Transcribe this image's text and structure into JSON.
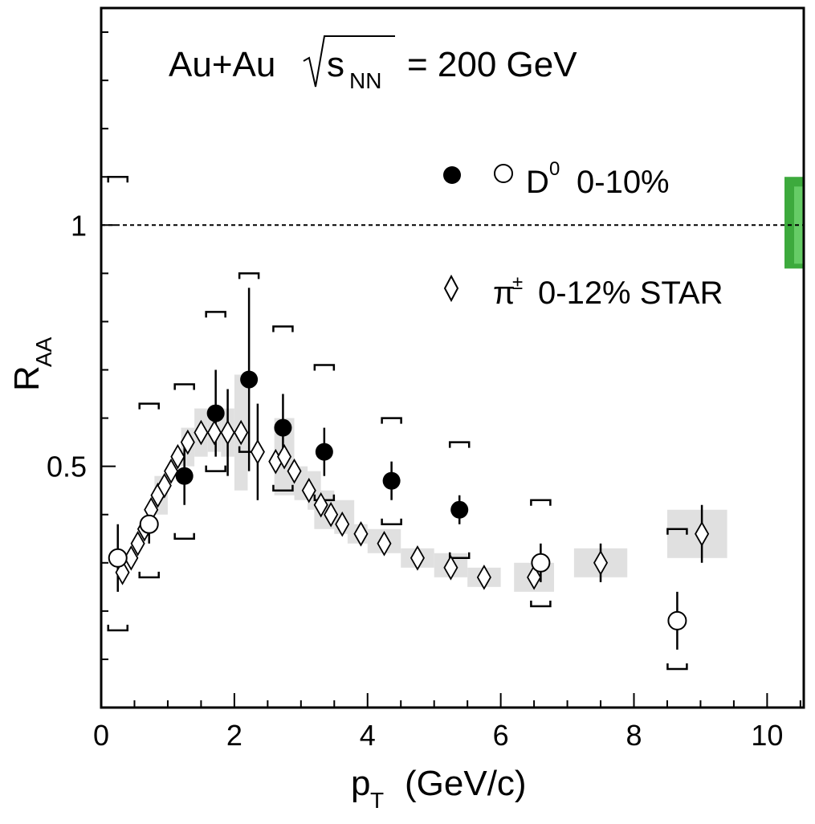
{
  "chart_data": {
    "type": "scatter",
    "title": "Au+Au",
    "energy_label": {
      "prefix": "s",
      "sub": "NN",
      "suffix": "= 200 GeV"
    },
    "xlabel": {
      "main": "p",
      "sub": "T",
      "rest": "(GeV/c)"
    },
    "ylabel": {
      "main": "R",
      "sub": "AA"
    },
    "xlim": [
      0,
      10.55
    ],
    "ylim": [
      0,
      1.45
    ],
    "x_ticks": [
      "0",
      "2",
      "4",
      "6",
      "8",
      "10"
    ],
    "y_ticks": [
      "0.5",
      "1"
    ],
    "reference_line": 1.0,
    "legend": {
      "d0": {
        "label_main": "D",
        "label_sup": "0",
        "label_rest": "0-10%"
      },
      "pion": {
        "label_main": "π",
        "label_sup": "±",
        "label_rest": "0-12% STAR"
      }
    },
    "series": [
      {
        "name": "D0 0-10% (filled)",
        "marker": "filled-circle",
        "points": [
          {
            "x": 1.25,
            "y": 0.48,
            "err": 0.06,
            "sys": [
              0.35,
              0.67
            ]
          },
          {
            "x": 1.72,
            "y": 0.61,
            "err": 0.09,
            "sys": [
              0.49,
              0.82
            ]
          },
          {
            "x": 2.22,
            "y": 0.68,
            "err": 0.19,
            "sys": [
              0.53,
              0.9
            ]
          },
          {
            "x": 2.73,
            "y": 0.58,
            "err": 0.07,
            "sys": [
              0.45,
              0.79
            ]
          },
          {
            "x": 3.35,
            "y": 0.53,
            "err": 0.05,
            "sys": [
              0.43,
              0.71
            ]
          },
          {
            "x": 4.36,
            "y": 0.47,
            "err": 0.04,
            "sys": [
              0.38,
              0.6
            ]
          },
          {
            "x": 5.38,
            "y": 0.41,
            "err": 0.03,
            "sys": [
              0.31,
              0.55
            ]
          }
        ]
      },
      {
        "name": "D0 0-10% (open)",
        "marker": "open-circle",
        "points": [
          {
            "x": 0.25,
            "y": 0.31,
            "err": 0.07,
            "sys": [
              0.16,
              1.1
            ]
          },
          {
            "x": 0.72,
            "y": 0.38,
            "err": 0.04,
            "sys": [
              0.27,
              0.63
            ]
          },
          {
            "x": 6.6,
            "y": 0.3,
            "err": 0.04,
            "sys": [
              0.21,
              0.43
            ]
          },
          {
            "x": 8.65,
            "y": 0.18,
            "err": 0.06,
            "sys": [
              0.08,
              0.37
            ]
          }
        ]
      },
      {
        "name": "pi+- 0-12% STAR",
        "marker": "open-diamond",
        "points": [
          {
            "x": 0.32,
            "y": 0.28
          },
          {
            "x": 0.45,
            "y": 0.31
          },
          {
            "x": 0.55,
            "y": 0.34
          },
          {
            "x": 0.65,
            "y": 0.37
          },
          {
            "x": 0.75,
            "y": 0.41
          },
          {
            "x": 0.85,
            "y": 0.44
          },
          {
            "x": 0.95,
            "y": 0.46
          },
          {
            "x": 1.05,
            "y": 0.49
          },
          {
            "x": 1.15,
            "y": 0.52
          },
          {
            "x": 1.3,
            "y": 0.55
          },
          {
            "x": 1.5,
            "y": 0.57
          },
          {
            "x": 1.7,
            "y": 0.57
          },
          {
            "x": 1.9,
            "y": 0.57
          },
          {
            "x": 2.1,
            "y": 0.57
          },
          {
            "x": 2.35,
            "y": 0.53
          },
          {
            "x": 2.62,
            "y": 0.51
          },
          {
            "x": 2.75,
            "y": 0.52
          },
          {
            "x": 2.9,
            "y": 0.49
          },
          {
            "x": 3.12,
            "y": 0.45
          },
          {
            "x": 3.3,
            "y": 0.42
          },
          {
            "x": 3.45,
            "y": 0.4
          },
          {
            "x": 3.62,
            "y": 0.38
          },
          {
            "x": 3.9,
            "y": 0.36
          },
          {
            "x": 4.25,
            "y": 0.34
          },
          {
            "x": 4.75,
            "y": 0.31
          },
          {
            "x": 5.25,
            "y": 0.29
          },
          {
            "x": 5.75,
            "y": 0.27
          },
          {
            "x": 6.5,
            "y": 0.27
          },
          {
            "x": 7.5,
            "y": 0.3
          },
          {
            "x": 9.02,
            "y": 0.36
          }
        ]
      }
    ],
    "pion_error_bars": [
      {
        "x": 1.9,
        "y": 0.57,
        "err": 0.09
      },
      {
        "x": 2.35,
        "y": 0.53,
        "err": 0.1
      },
      {
        "x": 7.5,
        "y": 0.3,
        "err": 0.04
      },
      {
        "x": 9.02,
        "y": 0.36,
        "err": 0.06
      }
    ],
    "pion_sys_boxes": [
      {
        "x0": 0.8,
        "x1": 1.0,
        "y0": 0.4,
        "y1": 0.48
      },
      {
        "x0": 1.2,
        "x1": 1.4,
        "y0": 0.5,
        "y1": 0.58
      },
      {
        "x0": 1.4,
        "x1": 1.6,
        "y0": 0.52,
        "y1": 0.62
      },
      {
        "x0": 1.6,
        "x1": 1.8,
        "y0": 0.53,
        "y1": 0.61
      },
      {
        "x0": 1.8,
        "x1": 2.0,
        "y0": 0.52,
        "y1": 0.62
      },
      {
        "x0": 2.0,
        "x1": 2.2,
        "y0": 0.45,
        "y1": 0.69
      },
      {
        "x0": 2.6,
        "x1": 2.9,
        "y0": 0.44,
        "y1": 0.6
      },
      {
        "x0": 2.9,
        "x1": 3.1,
        "y0": 0.43,
        "y1": 0.5
      },
      {
        "x0": 3.1,
        "x1": 3.3,
        "y0": 0.41,
        "y1": 0.49
      },
      {
        "x0": 3.2,
        "x1": 3.5,
        "y0": 0.37,
        "y1": 0.45
      },
      {
        "x0": 3.5,
        "x1": 3.8,
        "y0": 0.36,
        "y1": 0.43
      },
      {
        "x0": 3.7,
        "x1": 4.0,
        "y0": 0.34,
        "y1": 0.38
      },
      {
        "x0": 4.0,
        "x1": 4.5,
        "y0": 0.32,
        "y1": 0.37
      },
      {
        "x0": 4.5,
        "x1": 5.0,
        "y0": 0.29,
        "y1": 0.33
      },
      {
        "x0": 5.0,
        "x1": 5.5,
        "y0": 0.27,
        "y1": 0.32
      },
      {
        "x0": 5.5,
        "x1": 6.0,
        "y0": 0.25,
        "y1": 0.29
      },
      {
        "x0": 6.2,
        "x1": 6.8,
        "y0": 0.24,
        "y1": 0.3
      },
      {
        "x0": 7.1,
        "x1": 7.9,
        "y0": 0.27,
        "y1": 0.33
      },
      {
        "x0": 8.5,
        "x1": 9.4,
        "y0": 0.31,
        "y1": 0.41
      }
    ],
    "normalization_band": {
      "outer": [
        0.91,
        1.1
      ],
      "inner": [
        0.92,
        1.08
      ]
    },
    "colors": {
      "sys_box": "#e0e0e0",
      "norm_band_outer": "#3daa3d",
      "norm_band_inner": "#66cc66",
      "ink": "#000000"
    }
  }
}
